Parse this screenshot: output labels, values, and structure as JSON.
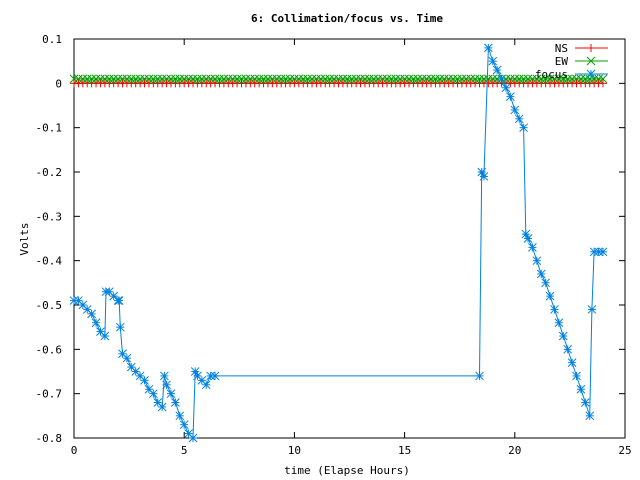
{
  "chart_data": {
    "type": "line",
    "title": "6: Collimation/focus vs. Time",
    "xlabel": "time (Elapse Hours)",
    "ylabel": "Volts",
    "xlim": [
      0,
      25
    ],
    "ylim": [
      -0.8,
      0.1
    ],
    "xticks": [
      "0",
      "5",
      "10",
      "15",
      "20",
      "25"
    ],
    "yticks": [
      "0.1",
      "0",
      "-0.1",
      "-0.2",
      "-0.3",
      "-0.4",
      "-0.5",
      "-0.6",
      "-0.7",
      "-0.8"
    ],
    "grid": false,
    "legend_position": "top-right",
    "series": [
      {
        "name": "NS",
        "color": "#ff0000",
        "marker": "plus",
        "x": [
          0,
          24
        ],
        "y": [
          0,
          0
        ],
        "constant": true
      },
      {
        "name": "EW",
        "color": "#00a000",
        "marker": "cross",
        "x": [
          0,
          24
        ],
        "y": [
          0.01,
          0.01
        ],
        "constant": true
      },
      {
        "name": "focus",
        "color": "#0080e0",
        "marker": "star",
        "x": [
          0.0,
          0.2,
          0.4,
          0.6,
          0.8,
          1.0,
          1.2,
          1.4,
          1.45,
          1.6,
          1.8,
          2.0,
          2.05,
          2.1,
          2.2,
          2.4,
          2.6,
          2.8,
          3.0,
          3.2,
          3.4,
          3.6,
          3.8,
          4.0,
          4.1,
          4.2,
          4.4,
          4.6,
          4.8,
          5.0,
          5.2,
          5.4,
          5.5,
          5.6,
          5.8,
          6.0,
          6.2,
          6.4,
          18.4,
          18.5,
          18.6,
          18.8,
          19.0,
          19.2,
          19.4,
          19.6,
          19.8,
          20.0,
          20.2,
          20.4,
          20.5,
          20.6,
          20.8,
          21.0,
          21.2,
          21.4,
          21.6,
          21.8,
          22.0,
          22.2,
          22.4,
          22.6,
          22.8,
          23.0,
          23.2,
          23.4,
          23.5,
          23.6,
          23.8,
          24.0
        ],
        "y": [
          -0.49,
          -0.49,
          -0.5,
          -0.51,
          -0.52,
          -0.54,
          -0.56,
          -0.57,
          -0.47,
          -0.47,
          -0.48,
          -0.49,
          -0.49,
          -0.55,
          -0.61,
          -0.62,
          -0.64,
          -0.65,
          -0.66,
          -0.67,
          -0.69,
          -0.7,
          -0.72,
          -0.73,
          -0.66,
          -0.68,
          -0.7,
          -0.72,
          -0.75,
          -0.77,
          -0.79,
          -0.8,
          -0.65,
          -0.66,
          -0.67,
          -0.68,
          -0.66,
          -0.66,
          -0.66,
          -0.2,
          -0.21,
          0.08,
          0.05,
          0.03,
          0.01,
          -0.01,
          -0.03,
          -0.06,
          -0.08,
          -0.1,
          -0.34,
          -0.35,
          -0.37,
          -0.4,
          -0.43,
          -0.45,
          -0.48,
          -0.51,
          -0.54,
          -0.57,
          -0.6,
          -0.63,
          -0.66,
          -0.69,
          -0.72,
          -0.75,
          -0.51,
          -0.38,
          -0.38,
          -0.38
        ]
      }
    ]
  }
}
